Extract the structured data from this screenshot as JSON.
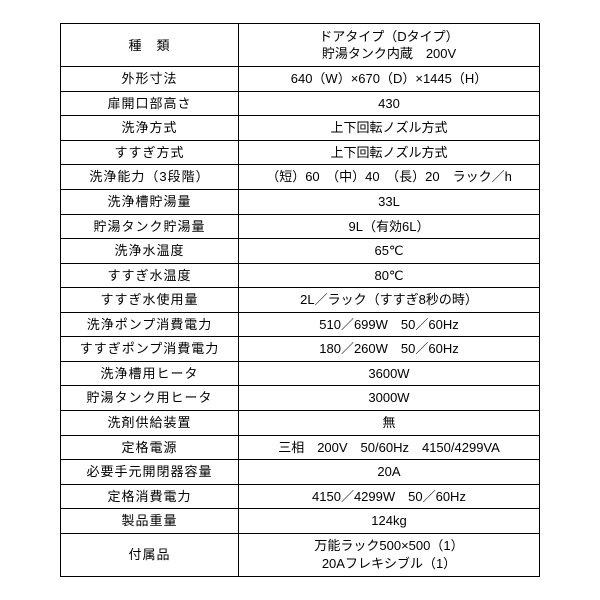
{
  "rows": [
    {
      "label": "種　類",
      "value": "ドアタイプ（Dタイプ）<br>貯湯タンク内蔵　200V",
      "tall": true
    },
    {
      "label": "外形寸法",
      "value": "640（W）×670（D）×1445（H）"
    },
    {
      "label": "扉開口部高さ",
      "value": "430"
    },
    {
      "label": "洗浄方式",
      "value": "上下回転ノズル方式"
    },
    {
      "label": "すすぎ方式",
      "value": "上下回転ノズル方式"
    },
    {
      "label": "洗浄能力（3段階）",
      "value": "（短）60　（中）40　（長）20　ラック／h"
    },
    {
      "label": "洗浄槽貯湯量",
      "value": "33L"
    },
    {
      "label": "貯湯タンク貯湯量",
      "value": "9L（有効6L）"
    },
    {
      "label": "洗浄水温度",
      "value": "65℃"
    },
    {
      "label": "すすぎ水温度",
      "value": "80℃"
    },
    {
      "label": "すすぎ水使用量",
      "value": "2L／ラック（すすぎ8秒の時）"
    },
    {
      "label": "洗浄ポンプ消費電力",
      "value": "510／699W　50／60Hz"
    },
    {
      "label": "すすぎポンプ消費電力",
      "value": "180／260W　50／60Hz"
    },
    {
      "label": "洗浄槽用ヒータ",
      "value": "3600W"
    },
    {
      "label": "貯湯タンク用ヒータ",
      "value": "3000W"
    },
    {
      "label": "洗剤供給装置",
      "value": "無"
    },
    {
      "label": "定格電源",
      "value": "三相　200V　50/60Hz　4150/4299VA"
    },
    {
      "label": "必要手元開閉器容量",
      "value": "20A"
    },
    {
      "label": "定格消費電力",
      "value": "4150／4299W　50／60Hz"
    },
    {
      "label": "製品重量",
      "value": "124kg"
    },
    {
      "label": "付属品",
      "value": "万能ラック500×500（1）<br>20Aフレキシブル（1）",
      "tall": true
    }
  ]
}
